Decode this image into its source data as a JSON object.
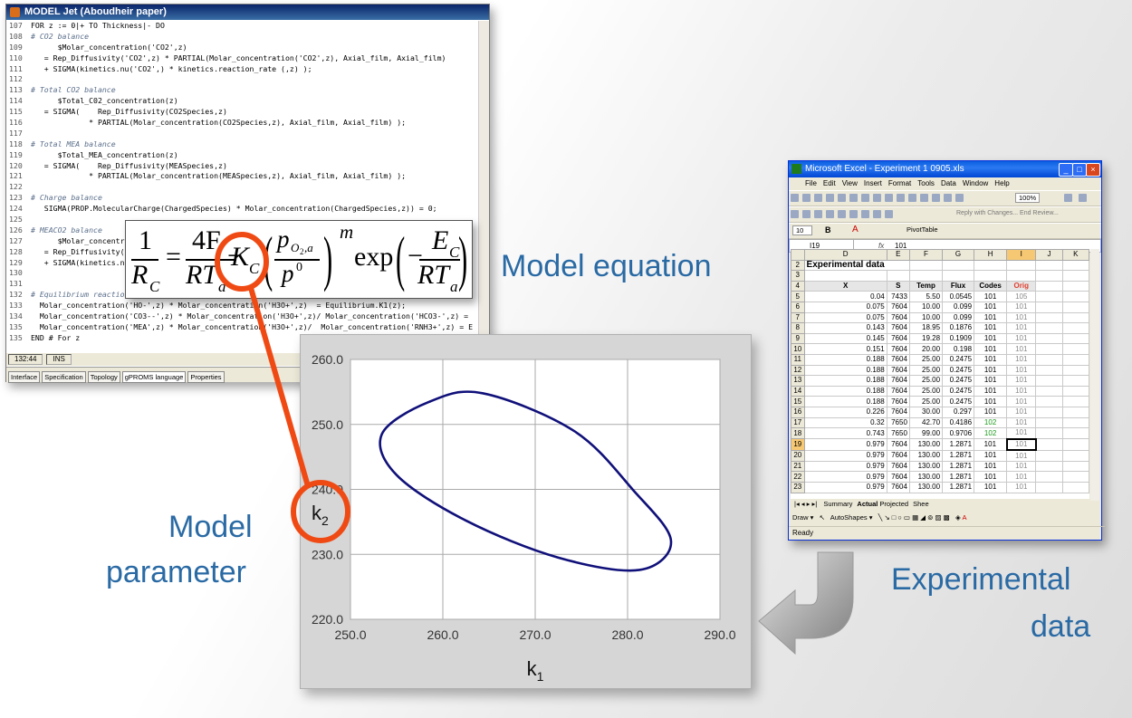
{
  "code_window": {
    "title": "MODEL Jet (Aboudheir paper)",
    "lines": [
      {
        "n": "107",
        "t": "FOR z := 0|+ TO Thickness|- DO",
        "c": false
      },
      {
        "n": "108",
        "t": "# CO2 balance",
        "c": true
      },
      {
        "n": "109",
        "t": "      $Molar_concentration('CO2',z)",
        "c": false
      },
      {
        "n": "110",
        "t": "   = Rep_Diffusivity('CO2',z) * PARTIAL(Molar_concentration('CO2',z), Axial_film, Axial_film)",
        "c": false
      },
      {
        "n": "111",
        "t": "   + SIGMA(kinetics.nu('CO2',) * kinetics.reaction_rate (,z) );",
        "c": false
      },
      {
        "n": "112",
        "t": "",
        "c": false
      },
      {
        "n": "113",
        "t": "# Total CO2 balance",
        "c": true
      },
      {
        "n": "114",
        "t": "      $Total_C02_concentration(z)",
        "c": false
      },
      {
        "n": "115",
        "t": "   = SIGMA(    Rep_Diffusivity(CO2Species,z)",
        "c": false
      },
      {
        "n": "116",
        "t": "             * PARTIAL(Molar_concentration(CO2Species,z), Axial_film, Axial_film) );",
        "c": false
      },
      {
        "n": "117",
        "t": "",
        "c": false
      },
      {
        "n": "118",
        "t": "# Total MEA balance",
        "c": true
      },
      {
        "n": "119",
        "t": "      $Total_MEA_concentration(z)",
        "c": false
      },
      {
        "n": "120",
        "t": "   = SIGMA(    Rep_Diffusivity(MEASpecies,z)",
        "c": false
      },
      {
        "n": "121",
        "t": "             * PARTIAL(Molar_concentration(MEASpecies,z), Axial_film, Axial_film) );",
        "c": false
      },
      {
        "n": "122",
        "t": "",
        "c": false
      },
      {
        "n": "123",
        "t": "# Charge balance",
        "c": true
      },
      {
        "n": "124",
        "t": "   SIGMA(PROP.MolecularCharge(ChargedSpecies) * Molar_concentration(ChargedSpecies,z)) = 0;",
        "c": false
      },
      {
        "n": "125",
        "t": "",
        "c": false
      },
      {
        "n": "126",
        "t": "# MEACO2 balance",
        "c": true
      },
      {
        "n": "127",
        "t": "      $Molar_concentrat",
        "c": false
      },
      {
        "n": "128",
        "t": "   = Rep_Diffusivity('",
        "c": false
      },
      {
        "n": "129",
        "t": "   + SIGMA(kinetics.nu",
        "c": false
      },
      {
        "n": "130",
        "t": "",
        "c": false
      },
      {
        "n": "131",
        "t": "",
        "c": false
      },
      {
        "n": "132",
        "t": "# Equilibrium reaction",
        "c": true
      },
      {
        "n": "133",
        "t": "  Molar_concentration('HO-',z) * Molar_concentration('H3O+',z)  = Equilibrium.K1(z);",
        "c": false
      },
      {
        "n": "134",
        "t": "  Molar_concentration('CO3--',z) * Molar_concentration('H3O+',z)/ Molar_concentration('HCO3-',z) =",
        "c": false
      },
      {
        "n": "135",
        "t": "  Molar_concentration('MEA',z) * Molar_concentration('H3O+',z)/  Molar_concentration('RNH3+',z) = E",
        "c": false
      },
      {
        "n": "135",
        "t": "END # For z",
        "c": false
      }
    ],
    "status": [
      "132:44",
      "INS"
    ],
    "tabs": [
      "Interface",
      "Specification",
      "Topology",
      "gPROMS language",
      "Properties"
    ],
    "active_tab": "gPROMS language"
  },
  "equation": {
    "one": "1",
    "rc": "R",
    "rc_sub": "C",
    "equals": "=",
    "num_4f": "4F",
    "den_rt": "RT",
    "den_rt_sub": "a",
    "minus1": "−",
    "kc": "K",
    "kc_sub": "C",
    "p": "p",
    "p_sub": "O",
    "p_sub2": "2",
    "p_sub3": ",a",
    "p0": "p",
    "p0_sup": "0",
    "exp_m": "m",
    "exp": "exp",
    "minus2": "−",
    "ec": "E",
    "ec_sub": "C",
    "den_rt2": "RT",
    "den_rt2_sub": "a"
  },
  "labels": {
    "model_equation": "Model equation",
    "model_parameter_1": "Model",
    "model_parameter_2": "parameter",
    "experimental_1": "Experimental",
    "experimental_2": "data"
  },
  "highlight_color": "#f04a14",
  "chart_data": {
    "type": "line",
    "title": "",
    "xlabel": "k",
    "xlabel_sub": "1",
    "ylabel": "k",
    "ylabel_sub": "2",
    "xlim": [
      250,
      290
    ],
    "ylim": [
      220,
      260
    ],
    "xticks": [
      "250.0",
      "260.0",
      "270.0",
      "280.0",
      "290.0"
    ],
    "yticks": [
      "220.0",
      "230.0",
      "240.0",
      "250.0",
      "260.0"
    ],
    "grid": true,
    "series": [
      {
        "color": "#10107a",
        "shape": "ellipse",
        "x": [
          264.3,
          258.4,
          253.4,
          255.0,
          262.5,
          272.5,
          281.3,
          284.7,
          280.6,
          274.2,
          264.3
        ],
        "y": [
          254.8,
          253.4,
          248.5,
          242.2,
          235.2,
          229.5,
          227.6,
          232.1,
          239.9,
          249.0,
          254.8
        ]
      }
    ]
  },
  "excel": {
    "title": "Microsoft Excel - Experiment 1 0905.xls",
    "menu": [
      "File",
      "Edit",
      "View",
      "Insert",
      "Format",
      "Tools",
      "Data",
      "Window",
      "Help"
    ],
    "zoom": "100%",
    "font_size": "10",
    "toolbar_text": "Reply with Changes...  End Review...",
    "pivot": "PivotTable",
    "name_box": "I19",
    "formula_value": "101",
    "fx": "fx",
    "columns": [
      "D",
      "E",
      "F",
      "G",
      "H",
      "I",
      "J",
      "K"
    ],
    "sheet_title": "Experimental data",
    "headers": [
      "X",
      "S",
      "Temp",
      "Flux",
      "Codes",
      "Orig"
    ],
    "rows": [
      {
        "r": "5",
        "x": "0.04",
        "s": "7433",
        "t": "5.50",
        "f": "0.0545",
        "c": "101",
        "o": "105"
      },
      {
        "r": "6",
        "x": "0.075",
        "s": "7604",
        "t": "10.00",
        "f": "0.099",
        "c": "101",
        "o": "101"
      },
      {
        "r": "7",
        "x": "0.075",
        "s": "7604",
        "t": "10.00",
        "f": "0.099",
        "c": "101",
        "o": "101"
      },
      {
        "r": "8",
        "x": "0.143",
        "s": "7604",
        "t": "18.95",
        "f": "0.1876",
        "c": "101",
        "o": "101"
      },
      {
        "r": "9",
        "x": "0.145",
        "s": "7604",
        "t": "19.28",
        "f": "0.1909",
        "c": "101",
        "o": "101"
      },
      {
        "r": "10",
        "x": "0.151",
        "s": "7604",
        "t": "20.00",
        "f": "0.198",
        "c": "101",
        "o": "101"
      },
      {
        "r": "11",
        "x": "0.188",
        "s": "7604",
        "t": "25.00",
        "f": "0.2475",
        "c": "101",
        "o": "101"
      },
      {
        "r": "12",
        "x": "0.188",
        "s": "7604",
        "t": "25.00",
        "f": "0.2475",
        "c": "101",
        "o": "101"
      },
      {
        "r": "13",
        "x": "0.188",
        "s": "7604",
        "t": "25.00",
        "f": "0.2475",
        "c": "101",
        "o": "101"
      },
      {
        "r": "14",
        "x": "0.188",
        "s": "7604",
        "t": "25.00",
        "f": "0.2475",
        "c": "101",
        "o": "101"
      },
      {
        "r": "15",
        "x": "0.188",
        "s": "7604",
        "t": "25.00",
        "f": "0.2475",
        "c": "101",
        "o": "101"
      },
      {
        "r": "16",
        "x": "0.226",
        "s": "7604",
        "t": "30.00",
        "f": "0.297",
        "c": "101",
        "o": "101"
      },
      {
        "r": "17",
        "x": "0.32",
        "s": "7650",
        "t": "42.70",
        "f": "0.4186",
        "c": "102",
        "o": "101"
      },
      {
        "r": "18",
        "x": "0.743",
        "s": "7650",
        "t": "99.00",
        "f": "0.9706",
        "c": "102",
        "o": "101"
      },
      {
        "r": "19",
        "x": "0.979",
        "s": "7604",
        "t": "130.00",
        "f": "1.2871",
        "c": "101",
        "o": "101"
      },
      {
        "r": "20",
        "x": "0.979",
        "s": "7604",
        "t": "130.00",
        "f": "1.2871",
        "c": "101",
        "o": "101"
      },
      {
        "r": "21",
        "x": "0.979",
        "s": "7604",
        "t": "130.00",
        "f": "1.2871",
        "c": "101",
        "o": "101"
      },
      {
        "r": "22",
        "x": "0.979",
        "s": "7604",
        "t": "130.00",
        "f": "1.2871",
        "c": "101",
        "o": "101"
      },
      {
        "r": "23",
        "x": "0.979",
        "s": "7604",
        "t": "130.00",
        "f": "1.2871",
        "c": "101",
        "o": "101"
      }
    ],
    "selected_row": "19",
    "tabs": [
      "Summary",
      "Actual",
      "Projected",
      "Shee"
    ],
    "active_tab": "Actual",
    "draw": "Draw",
    "autoshapes": "AutoShapes",
    "status": "Ready"
  }
}
